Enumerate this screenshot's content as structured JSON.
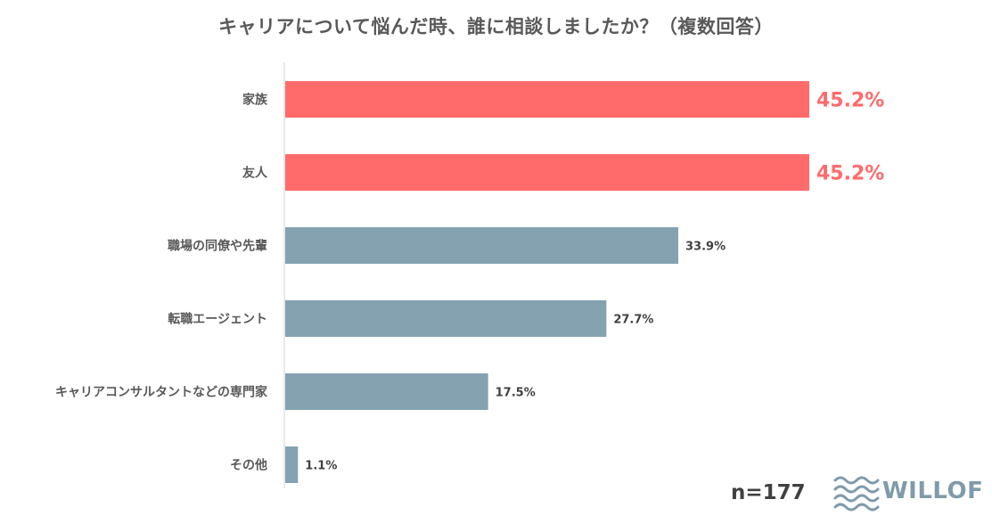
{
  "chart_data": {
    "type": "bar",
    "orientation": "horizontal",
    "title": "キャリアについて悩んだ時、誰に相談しましたか？（複数回答）",
    "categories": [
      "家族",
      "友人",
      "職場の同僚や先輩",
      "転職エージェント",
      "キャリアコンサルタントなどの専門家",
      "その他"
    ],
    "values": [
      45.2,
      45.2,
      33.9,
      27.7,
      17.5,
      1.1
    ],
    "value_labels": [
      "45.2%",
      "45.2%",
      "33.9%",
      "27.7%",
      "17.5%",
      "1.1%"
    ],
    "highlighted": [
      true,
      true,
      false,
      false,
      false,
      false
    ],
    "xlim": [
      0,
      45.2
    ],
    "unit": "%",
    "grid": false,
    "xlabel": "",
    "ylabel": ""
  },
  "colors": {
    "highlight": "#ff6b6b",
    "default": "#84a2b0",
    "text": "#595959",
    "logo": "#7f9bab"
  },
  "footer": {
    "sample_size": "n=177",
    "brand": "WILLOF"
  }
}
